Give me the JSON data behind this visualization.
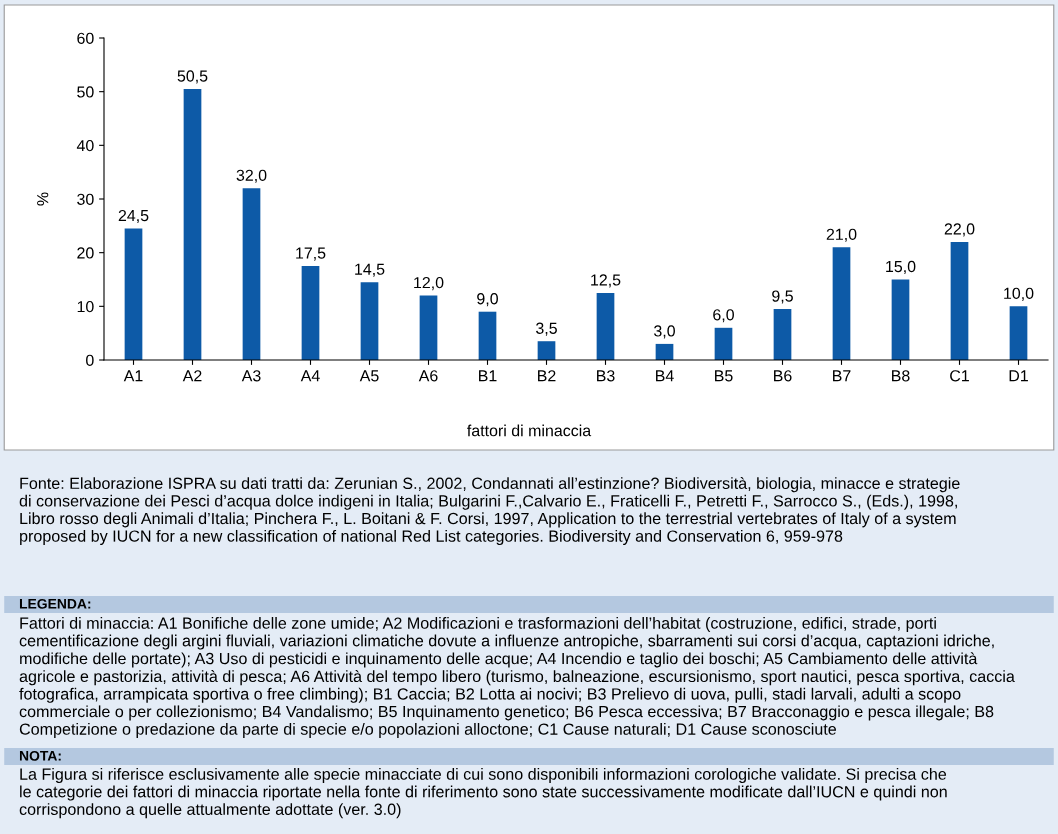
{
  "chart_data": {
    "type": "bar",
    "categories": [
      "A1",
      "A2",
      "A3",
      "A4",
      "A5",
      "A6",
      "B1",
      "B2",
      "B3",
      "B4",
      "B5",
      "B6",
      "B7",
      "B8",
      "C1",
      "D1"
    ],
    "values": [
      24.5,
      50.5,
      32.0,
      17.5,
      14.5,
      12.0,
      9.0,
      3.5,
      12.5,
      3.0,
      6.0,
      9.5,
      21.0,
      15.0,
      22.0,
      10.0
    ],
    "value_labels": [
      "24,5",
      "50,5",
      "32,0",
      "17,5",
      "14,5",
      "12,0",
      "9,0",
      "3,5",
      "12,5",
      "3,0",
      "6,0",
      "9,5",
      "21,0",
      "15,0",
      "22,0",
      "10,0"
    ],
    "color": "#0d5aa7",
    "xlabel": "fattori di minaccia",
    "ylabel": "%",
    "ylim": [
      0,
      60
    ],
    "yticks": [
      0,
      10,
      20,
      30,
      40,
      50,
      60
    ],
    "grid": false,
    "annotations": [
      "Fonte: Elaborazione ISPRA su dati tratti da: Zerunian S., 2002, Condannati all’estinzione? Biodiversità, biologia, minacce e strategie\ndi conservazione dei Pesci d’acqua dolce indigeni in Italia; Bulgarini F.,Calvario E., Fraticelli F., Petretti F., Sarrocco S., (Eds.), 1998,\nLibro rosso degli Animali d’Italia; Pinchera F., L. Boitani & F. Corsi, 1997, Application to the terrestrial vertebrates of Italy of a system\nproposed by IUCN for a new classification of national Red List categories. Biodiversity and Conservation 6, 959-978",
      "LEGENDA:",
      "Fattori di minaccia: A1 Bonifiche delle zone umide; A2 Modificazioni e trasformazioni dell’habitat (costruzione, edifici, strade, porti\ncementificazione degli argini fluviali, variazioni climatiche dovute a influenze antropiche, sbarramenti sui corsi d’acqua, captazioni idriche,\nmodifiche delle portate); A3 Uso di pesticidi e inquinamento delle acque; A4 Incendio e taglio dei boschi; A5 Cambiamento delle attività\nagricole e pastorizia, attività di pesca; A6 Attività del tempo libero (turismo, balneazione, escursionismo, sport nautici, pesca sportiva, caccia\nfotografica, arrampicata sportiva o free climbing); B1 Caccia; B2 Lotta ai nocivi; B3 Prelievo di uova, pulli, stadi larvali, adulti a scopo\ncommerciale o per collezionismo; B4 Vandalismo; B5 Inquinamento genetico; B6 Pesca eccessiva; B7 Bracconaggio e pesca illegale; B8\nCompetizione o predazione da parte di specie e/o popolazioni alloctone; C1 Cause naturali; D1 Cause sconosciute",
      "NOTA:",
      "La Figura si riferisce esclusivamente alle specie minacciate di cui sono disponibili informazioni corologiche validate. Si precisa che\nle categorie dei fattori di minaccia riportate nella fonte di riferimento sono state successivamente modificate dall’IUCN e quindi non\ncorrispondono a quelle attualmente adottate (ver. 3.0)"
    ]
  }
}
